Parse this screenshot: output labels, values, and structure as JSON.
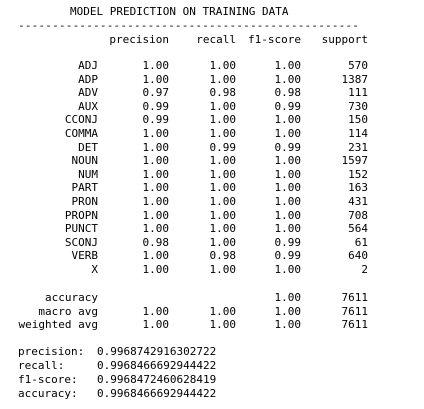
{
  "title": "MODEL PREDICTION ON TRAINING DATA",
  "rule": "--------------------------------------------------",
  "columns": [
    "precision",
    "recall",
    "f1-score",
    "support"
  ],
  "rows": [
    {
      "label": "ADJ",
      "precision": "1.00",
      "recall": "1.00",
      "f1": "1.00",
      "support": "570"
    },
    {
      "label": "ADP",
      "precision": "1.00",
      "recall": "1.00",
      "f1": "1.00",
      "support": "1387"
    },
    {
      "label": "ADV",
      "precision": "0.97",
      "recall": "0.98",
      "f1": "0.98",
      "support": "111"
    },
    {
      "label": "AUX",
      "precision": "0.99",
      "recall": "1.00",
      "f1": "0.99",
      "support": "730"
    },
    {
      "label": "CCONJ",
      "precision": "0.99",
      "recall": "1.00",
      "f1": "1.00",
      "support": "150"
    },
    {
      "label": "COMMA",
      "precision": "1.00",
      "recall": "1.00",
      "f1": "1.00",
      "support": "114"
    },
    {
      "label": "DET",
      "precision": "1.00",
      "recall": "0.99",
      "f1": "0.99",
      "support": "231"
    },
    {
      "label": "NOUN",
      "precision": "1.00",
      "recall": "1.00",
      "f1": "1.00",
      "support": "1597"
    },
    {
      "label": "NUM",
      "precision": "1.00",
      "recall": "1.00",
      "f1": "1.00",
      "support": "152"
    },
    {
      "label": "PART",
      "precision": "1.00",
      "recall": "1.00",
      "f1": "1.00",
      "support": "163"
    },
    {
      "label": "PRON",
      "precision": "1.00",
      "recall": "1.00",
      "f1": "1.00",
      "support": "431"
    },
    {
      "label": "PROPN",
      "precision": "1.00",
      "recall": "1.00",
      "f1": "1.00",
      "support": "708"
    },
    {
      "label": "PUNCT",
      "precision": "1.00",
      "recall": "1.00",
      "f1": "1.00",
      "support": "564"
    },
    {
      "label": "SCONJ",
      "precision": "0.98",
      "recall": "1.00",
      "f1": "0.99",
      "support": "61"
    },
    {
      "label": "VERB",
      "precision": "1.00",
      "recall": "0.98",
      "f1": "0.99",
      "support": "640"
    },
    {
      "label": "X",
      "precision": "1.00",
      "recall": "1.00",
      "f1": "1.00",
      "support": "2"
    }
  ],
  "averages": [
    {
      "label": "accuracy",
      "precision": "",
      "recall": "",
      "f1": "1.00",
      "support": "7611"
    },
    {
      "label": "macro avg",
      "precision": "1.00",
      "recall": "1.00",
      "f1": "1.00",
      "support": "7611"
    },
    {
      "label": "weighted avg",
      "precision": "1.00",
      "recall": "1.00",
      "f1": "1.00",
      "support": "7611"
    }
  ],
  "summary": [
    {
      "label": "precision:",
      "value": "0.9968742916302722"
    },
    {
      "label": "recall:",
      "value": "0.9968466692944422"
    },
    {
      "label": "f1-score:",
      "value": "0.9968472460628419"
    },
    {
      "label": "accuracy:",
      "value": "0.9968466692944422"
    }
  ]
}
